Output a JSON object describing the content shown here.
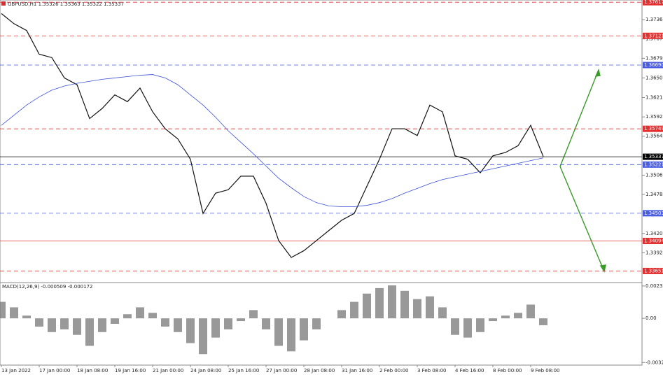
{
  "chart_data": [
    {
      "type": "line",
      "title": "GBPUSD,H1  1.35326 1.35363 1.35322 1.35337",
      "categories": [
        "13 Jan 2022",
        null,
        null,
        "17 Jan 00:00",
        null,
        null,
        "18 Jan 08:00",
        null,
        null,
        "19 Jan 16:00",
        null,
        null,
        "21 Jan 00:00",
        null,
        null,
        "24 Jan 08:00",
        null,
        null,
        "25 Jan 16:00",
        null,
        null,
        "27 Jan 00:00",
        null,
        null,
        "28 Jan 08:00",
        null,
        null,
        "31 Jan 16:00",
        null,
        null,
        "2 Feb 00:00",
        null,
        null,
        "3 Feb 08:00",
        null,
        null,
        "4 Feb 16:00",
        null,
        null,
        "8 Feb 00:00",
        null,
        null,
        "9 Feb 08:00",
        null
      ],
      "series": [
        {
          "color": "#111111",
          "values": [
            1.3745,
            1.373,
            1.372,
            1.3685,
            1.368,
            1.365,
            1.364,
            1.359,
            1.3605,
            1.3625,
            1.3615,
            1.3635,
            1.36,
            1.3575,
            1.356,
            1.353,
            1.345,
            1.348,
            1.3485,
            1.3505,
            1.3505,
            1.3465,
            1.341,
            1.3385,
            1.3395,
            1.341,
            1.3425,
            1.344,
            1.345,
            1.349,
            1.353,
            1.3575,
            1.3575,
            1.3565,
            1.361,
            1.36,
            1.3535,
            1.353,
            1.351,
            1.3535,
            1.354,
            1.355,
            1.358,
            1.3534
          ]
        },
        {
          "color": "#3b4fd8",
          "values": [
            1.358,
            1.3595,
            1.361,
            1.3622,
            1.3632,
            1.3638,
            1.3642,
            1.3645,
            1.3648,
            1.365,
            1.3652,
            1.3654,
            1.3655,
            1.365,
            1.364,
            1.3625,
            1.361,
            1.3592,
            1.3572,
            1.3555,
            1.3538,
            1.352,
            1.3502,
            1.3488,
            1.3475,
            1.3466,
            1.3461,
            1.346,
            1.346,
            1.3462,
            1.3466,
            1.3472,
            1.348,
            1.3487,
            1.3494,
            1.35,
            1.3504,
            1.3508,
            1.3512,
            1.3516,
            1.352,
            1.3524,
            1.3528,
            1.3532
          ]
        }
      ],
      "ylim": [
        1.3348,
        1.3765
      ],
      "yticks": [
        {
          "value": 1.3736,
          "label": "1.37360"
        },
        {
          "value": 1.37075,
          "label": "1.37075"
        },
        {
          "value": 1.3679,
          "label": "1.36790"
        },
        {
          "value": 1.365,
          "label": "1.36500"
        },
        {
          "value": 1.3621,
          "label": "1.36210"
        },
        {
          "value": 1.35925,
          "label": "1.35925"
        },
        {
          "value": 1.3564,
          "label": "1.35640"
        },
        {
          "value": 1.35065,
          "label": "1.35065"
        },
        {
          "value": 1.3478,
          "label": "1.34780"
        },
        {
          "value": 1.34205,
          "label": "1.34205"
        },
        {
          "value": 1.3392,
          "label": "1.33920"
        }
      ],
      "levels": [
        {
          "value": 1.37617,
          "label": "1.37617",
          "color": "#e03030",
          "dashed": true
        },
        {
          "value": 1.37121,
          "label": "1.37121",
          "color": "#e03030",
          "dashed": true
        },
        {
          "value": 1.3669,
          "label": "1.36690",
          "color": "#4a5ce0",
          "dashed": true
        },
        {
          "value": 1.35749,
          "label": "1.35749",
          "color": "#e03030",
          "dashed": true
        },
        {
          "value": 1.35337,
          "label": "1.35337",
          "color": "#000000",
          "dashed": false
        },
        {
          "value": 1.35221,
          "label": "1.35221",
          "color": "#4a5ce0",
          "dashed": true
        },
        {
          "value": 1.34503,
          "label": "1.34503",
          "color": "#4a5ce0",
          "dashed": true
        },
        {
          "value": 1.34094,
          "label": "1.34094",
          "color": "#e03030",
          "dashed": false
        },
        {
          "value": 1.33651,
          "label": "1.33651",
          "color": "#e03030",
          "dashed": true
        }
      ]
    },
    {
      "type": "bar",
      "title": "MACD(12,26,9) -0.000509 -0.000172",
      "color": "#777777",
      "values": [
        0.0012,
        0.0008,
        0.0002,
        -0.0006,
        -0.001,
        -0.0008,
        -0.0012,
        -0.002,
        -0.001,
        -0.0004,
        0.0003,
        0.0008,
        0.0004,
        -0.0006,
        -0.001,
        -0.0018,
        -0.0026,
        -0.0014,
        -0.0008,
        -0.0002,
        0.0006,
        -0.0008,
        -0.002,
        -0.0024,
        -0.0016,
        -0.0008,
        0.0,
        0.0006,
        0.0012,
        0.0018,
        0.0022,
        0.0024,
        0.002,
        0.0014,
        0.0016,
        0.0008,
        -0.0012,
        -0.0014,
        -0.001,
        -0.0002,
        0.0002,
        0.0004,
        0.001,
        -0.0005
      ],
      "ylim": [
        -0.00335,
        0.00255
      ],
      "yticks": [
        0.002352,
        {
          "value": 0.0,
          "label": "0.00"
        },
        -0.003212
      ]
    }
  ]
}
